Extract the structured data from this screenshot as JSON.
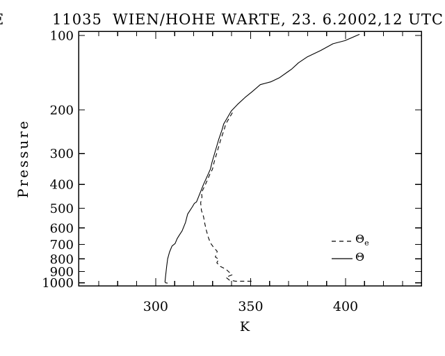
{
  "title": "11035  WIEN/HOHE WARTE, 23. 6.2002,12 UTC",
  "clipped_edge_character": "E",
  "colors": {
    "foreground": "#000000",
    "background": "#ffffff"
  },
  "axes": {
    "x": {
      "label": "K",
      "min": 259.4,
      "max": 439.9,
      "ticks_major": [
        300,
        350,
        400
      ],
      "minor_step": 10,
      "minor_first": 270,
      "minor_last": 430
    },
    "y": {
      "label": "Pressure",
      "scale": "log",
      "top_value": 96.2,
      "bottom_value": 1028,
      "ticks": [
        100,
        200,
        300,
        400,
        500,
        600,
        700,
        800,
        900,
        1000
      ]
    }
  },
  "legend": {
    "items": [
      {
        "symbol": "Θ",
        "subscript": "e",
        "line_style": "dashed",
        "series": "theta_e"
      },
      {
        "symbol": "Θ",
        "subscript": "",
        "line_style": "solid",
        "series": "theta"
      }
    ]
  },
  "chart_data": {
    "type": "line",
    "title": "11035  WIEN/HOHE WARTE, 23. 6.2002,12 UTC",
    "xlabel": "K",
    "ylabel": "Pressure",
    "xlim": [
      259.4,
      439.9
    ],
    "ylim_pressure_hpa": [
      1028,
      96.2
    ],
    "y_scale": "log",
    "grid": false,
    "legend_position": "inside-right-middle",
    "series": [
      {
        "name": "theta",
        "label": "Θ",
        "style": "solid",
        "units_x": "K",
        "units_y": "hPa",
        "points_p_k": [
          [
            1003,
            306.3
          ],
          [
            1000,
            305.2
          ],
          [
            990,
            304.9
          ],
          [
            960,
            305.1
          ],
          [
            915,
            305.4
          ],
          [
            858,
            305.8
          ],
          [
            800,
            306.3
          ],
          [
            751,
            307.3
          ],
          [
            710,
            308.6
          ],
          [
            694,
            310.2
          ],
          [
            663,
            311.3
          ],
          [
            642,
            312.4
          ],
          [
            617,
            313.9
          ],
          [
            570,
            315.7
          ],
          [
            528,
            316.8
          ],
          [
            518,
            317.5
          ],
          [
            493,
            319.3
          ],
          [
            477,
            320.4
          ],
          [
            471,
            321.5
          ],
          [
            441,
            323.0
          ],
          [
            400,
            325.2
          ],
          [
            363,
            327.7
          ],
          [
            347,
            328.8
          ],
          [
            325,
            329.7
          ],
          [
            293,
            331.4
          ],
          [
            263,
            333.2
          ],
          [
            240,
            335.0
          ],
          [
            228,
            335.8
          ],
          [
            216,
            337.6
          ],
          [
            202,
            339.8
          ],
          [
            190,
            343.1
          ],
          [
            178,
            347.1
          ],
          [
            169,
            350.7
          ],
          [
            158,
            355.1
          ],
          [
            154,
            360.6
          ],
          [
            148,
            365.3
          ],
          [
            140,
            369.7
          ],
          [
            137,
            371.5
          ],
          [
            129,
            375.2
          ],
          [
            122,
            379.9
          ],
          [
            115,
            386.9
          ],
          [
            108,
            393.4
          ],
          [
            105,
            399.6
          ],
          [
            99,
            407.3
          ]
        ]
      },
      {
        "name": "theta_e",
        "label": "Θe",
        "style": "dashed",
        "units_x": "K",
        "units_y": "hPa",
        "points_p_k": [
          [
            985,
            350.5
          ],
          [
            985,
            342.0
          ],
          [
            975,
            338.8
          ],
          [
            950,
            337.0
          ],
          [
            928,
            340.2
          ],
          [
            880,
            336.9
          ],
          [
            858,
            334.0
          ],
          [
            830,
            332.2
          ],
          [
            803,
            333.2
          ],
          [
            787,
            331.4
          ],
          [
            746,
            332.4
          ],
          [
            722,
            330.7
          ],
          [
            690,
            328.8
          ],
          [
            654,
            327.7
          ],
          [
            610,
            326.6
          ],
          [
            577,
            325.9
          ],
          [
            540,
            325.2
          ],
          [
            510,
            324.1
          ],
          [
            475,
            323.7
          ],
          [
            449,
            324.4
          ],
          [
            432,
            324.1
          ],
          [
            400,
            326.2
          ],
          [
            363,
            328.6
          ],
          [
            347,
            329.9
          ],
          [
            325,
            330.8
          ],
          [
            293,
            332.5
          ],
          [
            263,
            334.3
          ],
          [
            240,
            336.1
          ],
          [
            228,
            336.9
          ],
          [
            216,
            338.7
          ],
          [
            202,
            340.9
          ]
        ]
      }
    ]
  }
}
